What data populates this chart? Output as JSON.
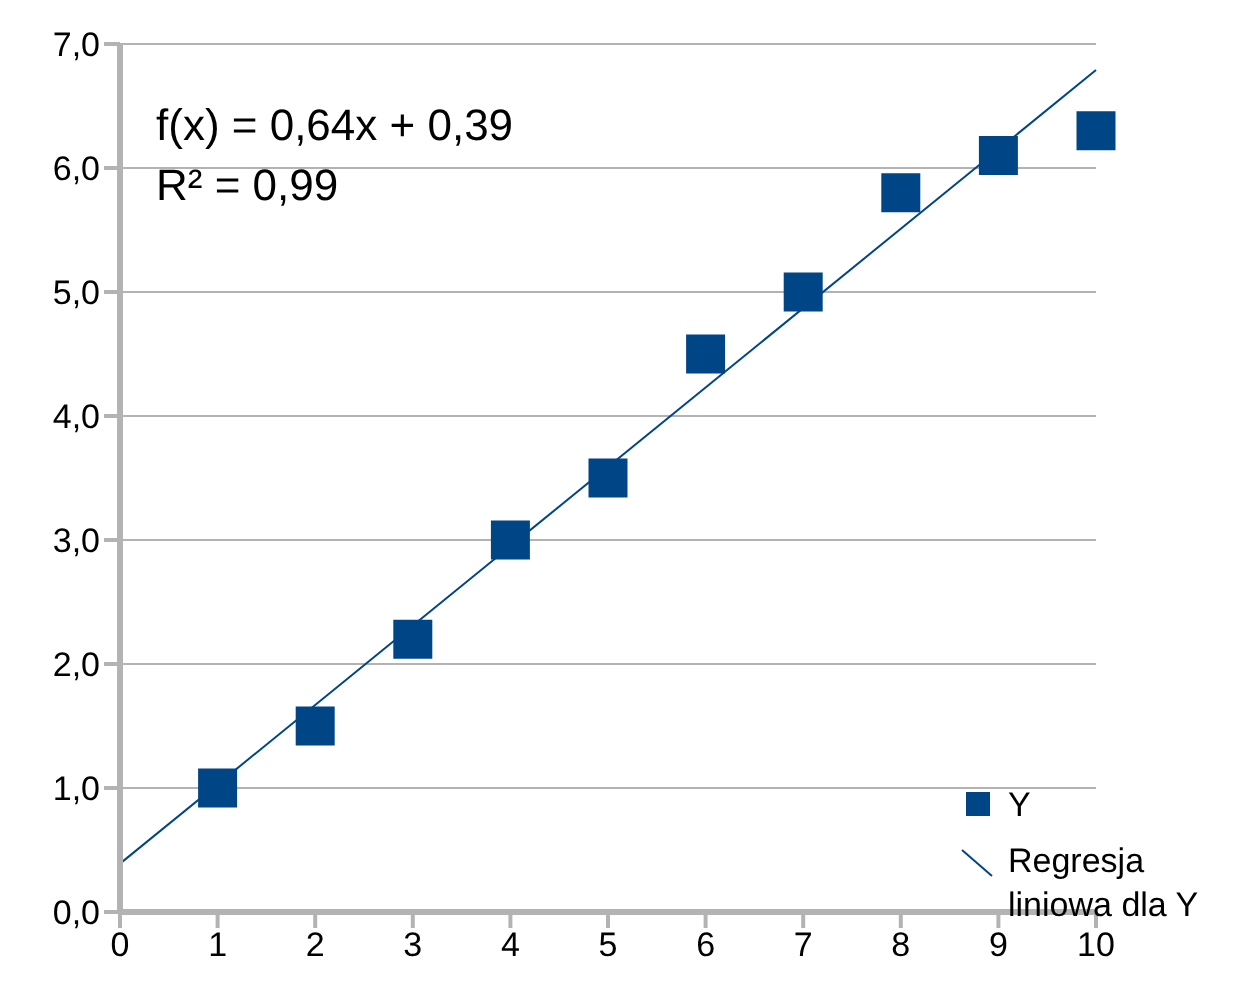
{
  "chart_data": {
    "type": "scatter",
    "x": [
      1,
      2,
      3,
      4,
      5,
      6,
      7,
      8,
      9,
      10
    ],
    "series": [
      {
        "name": "Y",
        "marker": "square",
        "color": "#004586",
        "values": [
          1.0,
          1.5,
          2.2,
          3.0,
          3.5,
          4.5,
          5.0,
          5.8,
          6.1,
          6.3
        ]
      },
      {
        "name": "Regresja liniowa dla Y",
        "type": "line",
        "color": "#004586",
        "x": [
          0,
          10
        ],
        "values": [
          0.39,
          6.79
        ]
      }
    ],
    "xlim": [
      0,
      10
    ],
    "xticks": [
      0,
      1,
      2,
      3,
      4,
      5,
      6,
      7,
      8,
      9,
      10
    ],
    "ylim": [
      0,
      7
    ],
    "yticks": [
      {
        "value": 0,
        "label": "0,0"
      },
      {
        "value": 1,
        "label": "1,0"
      },
      {
        "value": 2,
        "label": "2,0"
      },
      {
        "value": 3,
        "label": "3,0"
      },
      {
        "value": 4,
        "label": "4,0"
      },
      {
        "value": 5,
        "label": "5,0"
      },
      {
        "value": 6,
        "label": "6,0"
      },
      {
        "value": 7,
        "label": "7,0"
      }
    ],
    "grid": "y",
    "legend": "bottom right",
    "annotations": [
      "f(x) = 0,64x + 0,39",
      "R² = 0,99"
    ]
  }
}
